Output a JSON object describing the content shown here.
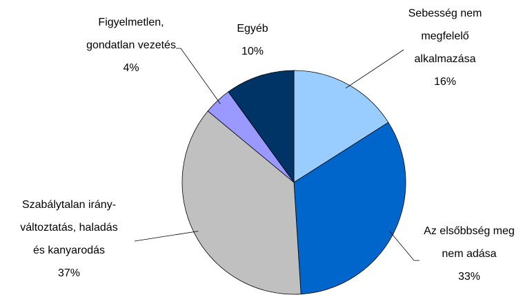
{
  "chart_data": {
    "type": "pie",
    "categories": [
      [
        "Sebesség nem",
        "megfelelő",
        "alkalmazása"
      ],
      [
        "Az elsőbbség meg",
        "nem adása"
      ],
      [
        "Szabálytalan irány-",
        "változtatás, haladás",
        "és kanyarodás"
      ],
      [
        "Figyelmetlen,",
        "gondatlan vezetés"
      ],
      [
        "Egyéb"
      ]
    ],
    "values": [
      16,
      33,
      37,
      4,
      10
    ],
    "value_labels": [
      "16%",
      "33%",
      "37%",
      "4%",
      "10%"
    ],
    "colors": [
      "#99ccff",
      "#0066cc",
      "#c0c0c0",
      "#9999ff",
      "#003366"
    ]
  }
}
